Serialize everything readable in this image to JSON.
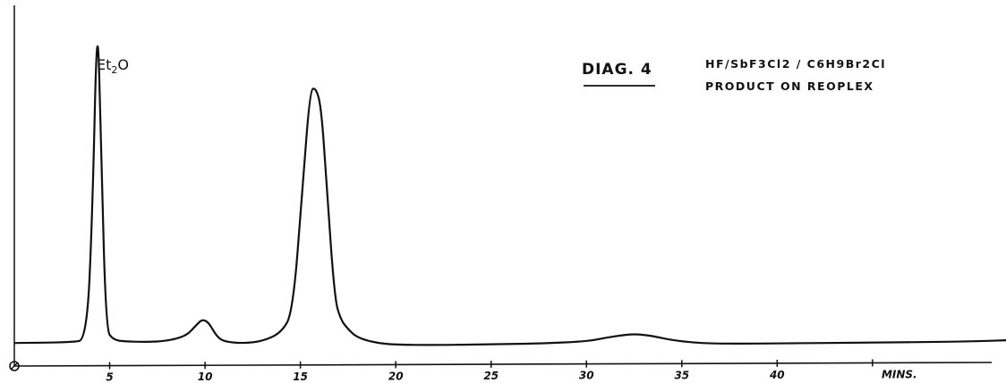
{
  "chart_data": {
    "type": "line",
    "title": "DIAG. 4",
    "description_lines": [
      "HF/SbF3Cl2 / C6H9Br2Cl",
      "PRODUCT ON REOPLEX"
    ],
    "xlabel": "MINS.",
    "ylabel": "",
    "xlim": [
      0,
      52
    ],
    "ylim": [
      0,
      100
    ],
    "x_ticks": [
      5,
      10,
      15,
      20,
      25,
      30,
      35,
      40,
      45
    ],
    "x_tick_labels": [
      "5",
      "10",
      "15",
      "20",
      "25",
      "30",
      "35",
      "40",
      "MINS."
    ],
    "grid": false,
    "series": [
      {
        "x": [
          0,
          3,
          3.8,
          4.1,
          4.35,
          4.55,
          4.8,
          5.2,
          6,
          7,
          8,
          9,
          9.5,
          9.85,
          10.2,
          10.6,
          11,
          12,
          13,
          14,
          14.6,
          15.1,
          15.5,
          15.8,
          16.1,
          16.4,
          16.8,
          17.1,
          17.5,
          18,
          19,
          20,
          22,
          25,
          28,
          30,
          31,
          32,
          32.7,
          33.5,
          34.5,
          36,
          38,
          40,
          45,
          48,
          50.5,
          52
        ],
        "y": [
          1,
          1.2,
          2,
          40,
          100,
          60,
          5,
          1.8,
          1.4,
          1.3,
          1.6,
          3,
          6,
          8,
          7,
          3,
          1.4,
          0.9,
          1.5,
          4,
          10,
          45,
          75,
          76,
          70,
          45,
          14,
          8,
          5,
          2.5,
          1,
          0.5,
          0.4,
          0.6,
          0.9,
          1.5,
          2.5,
          3.4,
          3.6,
          3,
          1.8,
          0.9,
          0.8,
          0.9,
          1.1,
          1.3,
          1.5,
          1.8
        ]
      }
    ],
    "annotations": [
      {
        "text": "Et2O",
        "x": 4.4
      }
    ]
  }
}
